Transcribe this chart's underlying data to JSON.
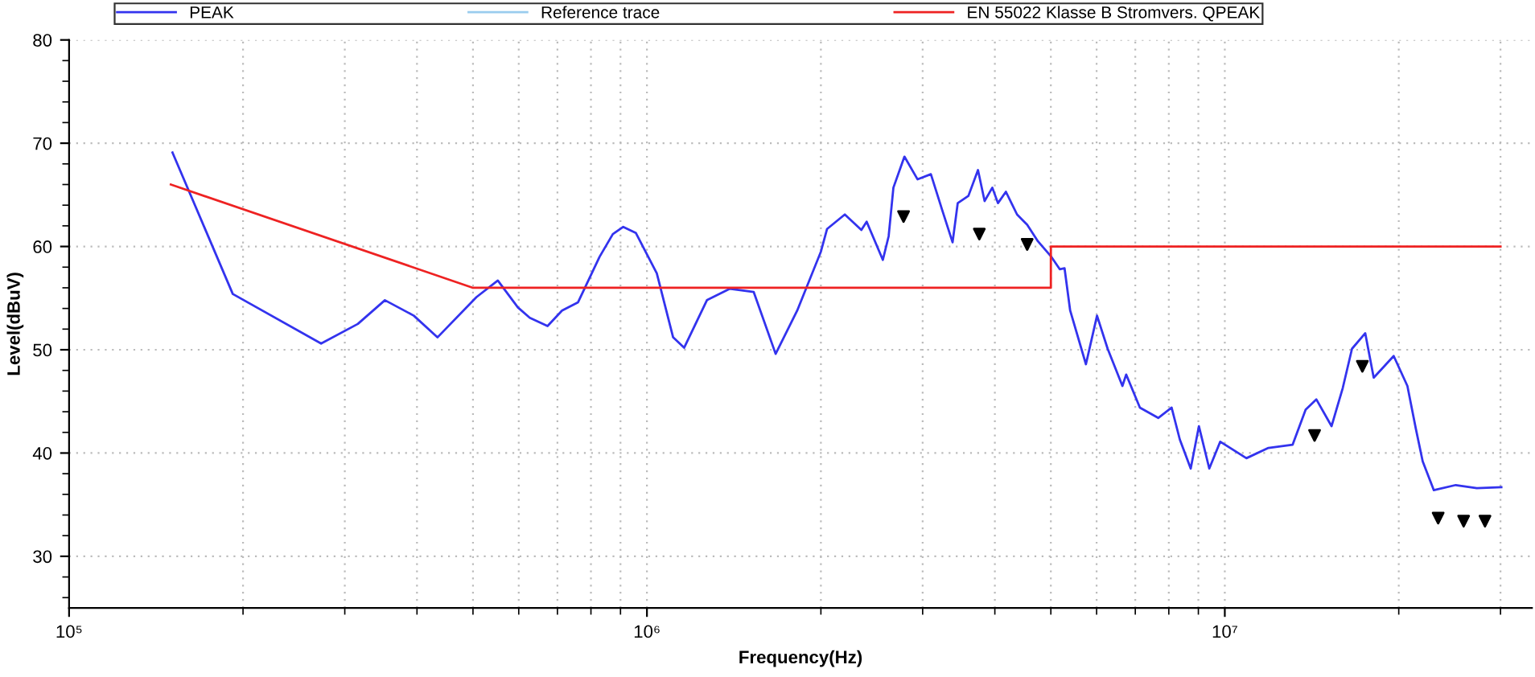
{
  "chart_data": {
    "type": "line",
    "xlabel": "Frequency(Hz)",
    "ylabel": "Level(dBuV)",
    "log": "x",
    "xlim": [
      100000,
      34000000
    ],
    "ylim": [
      25,
      80
    ],
    "xticks": [
      {
        "value": 100000,
        "label": "10⁵"
      },
      {
        "value": 200000,
        "label": null
      },
      {
        "value": 300000,
        "label": null
      },
      {
        "value": 400000,
        "label": null
      },
      {
        "value": 500000,
        "label": null
      },
      {
        "value": 600000,
        "label": null
      },
      {
        "value": 700000,
        "label": null
      },
      {
        "value": 800000,
        "label": null
      },
      {
        "value": 900000,
        "label": null
      },
      {
        "value": 1000000,
        "label": "10⁶"
      },
      {
        "value": 2000000,
        "label": null
      },
      {
        "value": 3000000,
        "label": null
      },
      {
        "value": 4000000,
        "label": null
      },
      {
        "value": 5000000,
        "label": null
      },
      {
        "value": 6000000,
        "label": null
      },
      {
        "value": 7000000,
        "label": null
      },
      {
        "value": 8000000,
        "label": null
      },
      {
        "value": 9000000,
        "label": null
      },
      {
        "value": 10000000,
        "label": "10⁷"
      },
      {
        "value": 20000000,
        "label": null
      },
      {
        "value": 30000000,
        "label": null
      }
    ],
    "yticks": [
      {
        "value": 26,
        "label": null
      },
      {
        "value": 28,
        "label": null
      },
      30,
      {
        "value": 32,
        "label": null
      },
      {
        "value": 34,
        "label": null
      },
      {
        "value": 36,
        "label": null
      },
      {
        "value": 38,
        "label": null
      },
      40,
      {
        "value": 42,
        "label": null
      },
      {
        "value": 44,
        "label": null
      },
      {
        "value": 46,
        "label": null
      },
      {
        "value": 48,
        "label": null
      },
      50,
      {
        "value": 52,
        "label": null
      },
      {
        "value": 54,
        "label": null
      },
      {
        "value": 56,
        "label": null
      },
      {
        "value": 58,
        "label": null
      },
      60,
      {
        "value": 62,
        "label": null
      },
      {
        "value": 64,
        "label": null
      },
      {
        "value": 66,
        "label": null
      },
      {
        "value": 68,
        "label": null
      },
      70,
      {
        "value": 72,
        "label": null
      },
      {
        "value": 74,
        "label": null
      },
      {
        "value": 76,
        "label": null
      },
      {
        "value": 78,
        "label": null
      },
      80
    ],
    "grid": true,
    "legend": "top",
    "line_style": "solid",
    "series": [
      {
        "name": "PEAK",
        "color": "#3333ee",
        "x": [
          151000,
          192000,
          273000,
          316000,
          352000,
          395000,
          434000,
          507000,
          552000,
          598000,
          627000,
          673000,
          713000,
          760000,
          828000,
          873000,
          910000,
          957000,
          1040000,
          1110000,
          1160000,
          1270000,
          1390000,
          1530000,
          1670000,
          1820000,
          2000000,
          2050000,
          2200000,
          2350000,
          2400000,
          2560000,
          2620000,
          2670000,
          2790000,
          2940000,
          3100000,
          3240000,
          3380000,
          3450000,
          3600000,
          3740000,
          3840000,
          3960000,
          4050000,
          4180000,
          4370000,
          4550000,
          4750000,
          5010000,
          5180000,
          5280000,
          5400000,
          5750000,
          6010000,
          6270000,
          6650000,
          6750000,
          7130000,
          7670000,
          8090000,
          8360000,
          8730000,
          9020000,
          9400000,
          9820000,
          10900000,
          11900000,
          13100000,
          13800000,
          14400000,
          15300000,
          16000000,
          16600000,
          17500000,
          18100000,
          19600000,
          20700000,
          21400000,
          22000000,
          23000000,
          25100000,
          27300000,
          30100000
        ],
        "values": [
          69.1,
          55.4,
          50.6,
          52.5,
          54.8,
          53.3,
          51.2,
          55.1,
          56.7,
          54.1,
          53.1,
          52.3,
          53.8,
          54.6,
          59.0,
          61.2,
          61.9,
          61.3,
          57.4,
          51.2,
          50.2,
          54.8,
          55.9,
          55.6,
          49.6,
          53.8,
          59.5,
          61.7,
          63.1,
          61.6,
          62.4,
          58.7,
          61.0,
          65.7,
          68.7,
          66.5,
          67.0,
          63.6,
          60.4,
          64.2,
          64.9,
          67.4,
          64.4,
          65.7,
          64.2,
          65.3,
          63.1,
          62.1,
          60.5,
          59.0,
          57.8,
          57.9,
          53.8,
          48.6,
          53.3,
          50.1,
          46.5,
          47.6,
          44.4,
          43.4,
          44.4,
          41.3,
          38.5,
          42.6,
          38.5,
          41.1,
          39.5,
          40.5,
          40.8,
          44.2,
          45.2,
          42.6,
          46.3,
          50.1,
          51.6,
          47.3,
          49.4,
          46.5,
          42.4,
          39.2,
          36.4,
          36.9,
          36.6,
          36.7
        ]
      },
      {
        "name": "Reference trace",
        "color": "#99ccee"
      },
      {
        "name": "EN 55022 Klasse B Stromvers. QPEAK",
        "color": "#ee2222",
        "x": [
          150000,
          500000,
          5000000,
          5000000,
          30000000
        ],
        "values": [
          66,
          56,
          56,
          60,
          60
        ]
      },
      {
        "type": "scatter",
        "marker": "triangle",
        "color": "#000000",
        "x": [
          2780000,
          3760000,
          4550000,
          14300000,
          17300000,
          23400000,
          25900000,
          28200000
        ],
        "values": [
          62.9,
          61.2,
          60.2,
          41.7,
          48.4,
          33.7,
          33.4,
          33.4
        ]
      }
    ]
  }
}
